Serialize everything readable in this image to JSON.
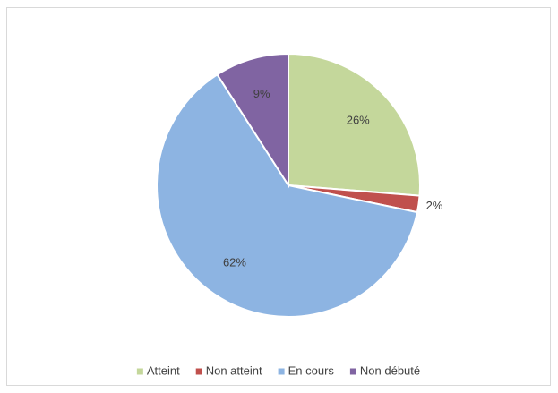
{
  "chart_data": {
    "type": "pie",
    "categories": [
      "Atteint",
      "Non atteint",
      "En cours",
      "Non débuté"
    ],
    "values": [
      26,
      2,
      62,
      9
    ],
    "value_labels": [
      "26%",
      "2%",
      "62%",
      "9%"
    ],
    "colors": [
      "#c4d79b",
      "#c0504d",
      "#8db4e2",
      "#8064a2"
    ],
    "legend": "bottom"
  }
}
